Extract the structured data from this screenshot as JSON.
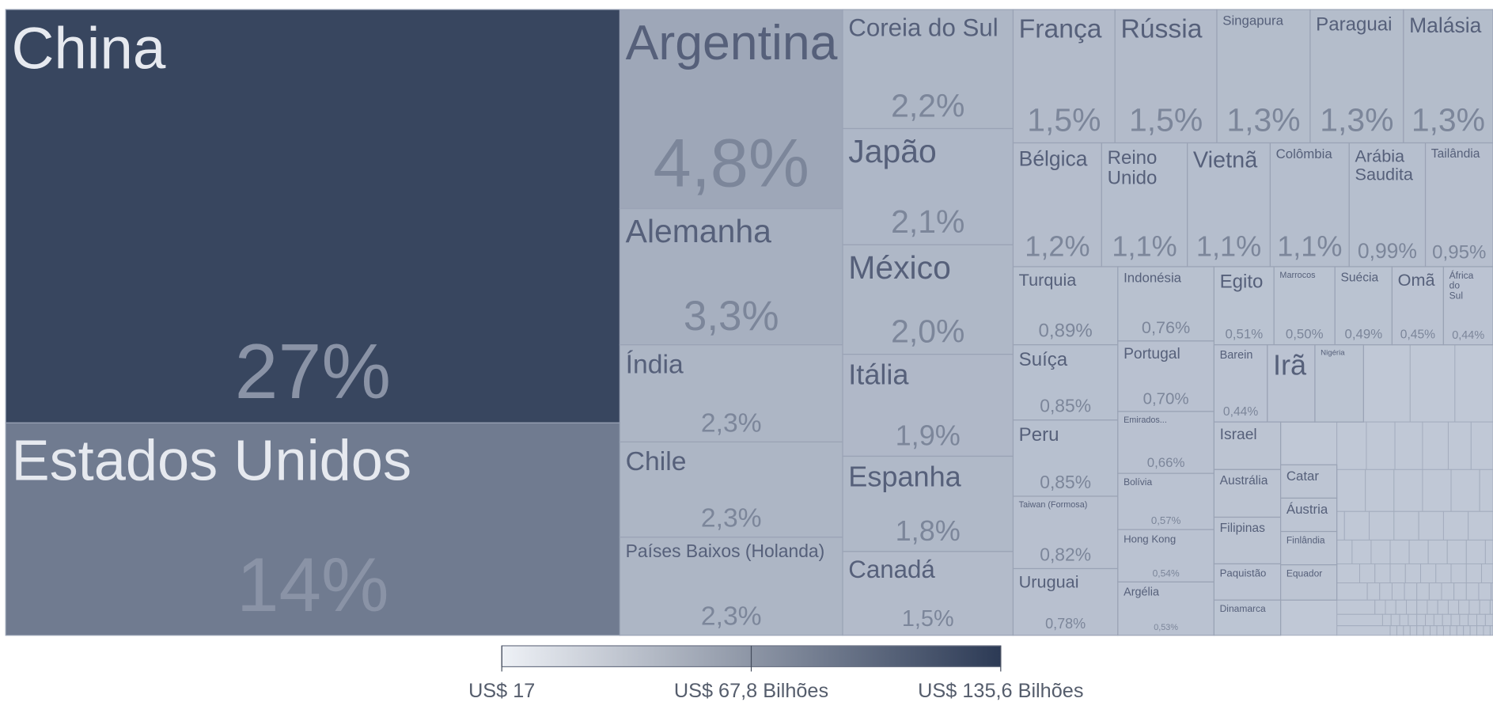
{
  "chart_data": {
    "type": "treemap",
    "categories": [
      "China",
      "Estados Unidos",
      "Argentina",
      "Alemanha",
      "Índia",
      "Chile",
      "Países Baixos (Holanda)",
      "Coreia do Sul",
      "Japão",
      "México",
      "Itália",
      "Espanha",
      "Canadá",
      "França",
      "Rússia",
      "Singapura",
      "Paraguai",
      "Malásia",
      "Bélgica",
      "Reino Unido",
      "Vietnã",
      "Colômbia",
      "Arábia Saudita",
      "Tailândia",
      "Turquia",
      "Indonésia",
      "Egito",
      "Marrocos",
      "Suécia",
      "Omã",
      "África do Sul",
      "Suíça",
      "Peru",
      "Taiwan (Formosa)",
      "Uruguai",
      "Portugal",
      "Emirados...",
      "Bolívia",
      "Hong Kong",
      "Argélia",
      "Barein",
      "Irã",
      "Nigéria",
      "Israel",
      "Austrália",
      "Filipinas",
      "Paquistão",
      "Dinamarca",
      "Catar",
      "Áustria",
      "Finlândia",
      "Equador"
    ],
    "values": [
      27,
      14,
      4.8,
      3.3,
      2.3,
      2.3,
      2.3,
      2.2,
      2.1,
      2.0,
      1.9,
      1.8,
      1.5,
      1.5,
      1.5,
      1.3,
      1.3,
      1.3,
      1.2,
      1.1,
      1.1,
      1.1,
      0.99,
      0.95,
      0.89,
      0.76,
      0.51,
      0.5,
      0.49,
      0.45,
      0.44,
      0.85,
      0.85,
      0.82,
      0.78,
      0.7,
      0.66,
      0.57,
      0.54,
      0.53,
      0.44,
      0.42,
      0.4,
      0.38,
      0.37,
      0.36,
      0.3,
      0.28,
      0.25,
      0.25,
      0.24,
      0.23
    ],
    "value_labels": [
      "27%",
      "14%",
      "4,8%",
      "3,3%",
      "2,3%",
      "2,3%",
      "2,3%",
      "2,2%",
      "2,1%",
      "2,0%",
      "1,9%",
      "1,8%",
      "1,5%",
      "1,5%",
      "1,5%",
      "1,3%",
      "1,3%",
      "1,3%",
      "1,2%",
      "1,1%",
      "1,1%",
      "1,1%",
      "0,99%",
      "0,95%",
      "0,89%",
      "0,76%",
      "0,51%",
      "0,50%",
      "0,49%",
      "0,45%",
      "0,44%",
      "0,85%",
      "0,85%",
      "0,82%",
      "0,78%",
      "0,70%",
      "0,66%",
      "0,57%",
      "0,54%",
      "0,53%",
      "0,44%",
      null,
      null,
      null,
      null,
      null,
      null,
      null,
      null,
      null,
      null,
      null
    ],
    "color_range": [
      "#c0c8d6",
      "#38465f"
    ],
    "colorbar": {
      "range": [
        17,
        135600000000
      ],
      "colors": [
        "#eef1f6",
        "#2c3a55"
      ],
      "ticks": [
        {
          "value": 17,
          "label": "US$ 17"
        },
        {
          "value": 67800000000,
          "label": "US$ 67,8 Bilhões"
        },
        {
          "value": 135600000000,
          "label": "US$ 135,6 Bilhões"
        }
      ]
    }
  }
}
